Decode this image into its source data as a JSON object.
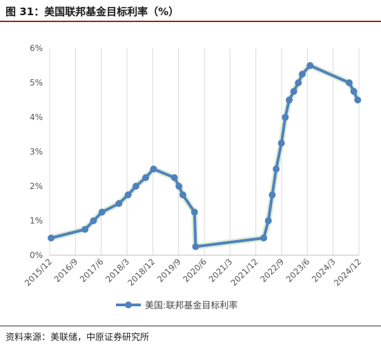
{
  "title": "图 31：美国联邦基金目标利率（%）",
  "source": "资料来源：美联储，中原证券研究所",
  "chart_data": {
    "type": "line",
    "title": "",
    "ylabel": "",
    "xlabel": "",
    "ylim": [
      0,
      6
    ],
    "y_ticks": [
      "0%",
      "1%",
      "2%",
      "3%",
      "4%",
      "5%",
      "6%"
    ],
    "x_tick_labels": [
      "2015/12",
      "2016/9",
      "2017/6",
      "2018/3",
      "2018/12",
      "2019/9",
      "2020/6",
      "2021/3",
      "2021/12",
      "2022/9",
      "2023/6",
      "2024/3",
      "2024/12"
    ],
    "grid": "vertical",
    "legend": "bottom",
    "series": [
      {
        "name": "美国:联邦基金目标利率",
        "color": "#4f81bd",
        "points": [
          {
            "x": "2015-12-16",
            "y": 0.5
          },
          {
            "x": "2016-12-14",
            "y": 0.75
          },
          {
            "x": "2017-03-15",
            "y": 1.0
          },
          {
            "x": "2017-06-14",
            "y": 1.25
          },
          {
            "x": "2017-12-13",
            "y": 1.5
          },
          {
            "x": "2018-03-21",
            "y": 1.75
          },
          {
            "x": "2018-06-13",
            "y": 2.0
          },
          {
            "x": "2018-09-26",
            "y": 2.25
          },
          {
            "x": "2018-12-19",
            "y": 2.5
          },
          {
            "x": "2019-07-31",
            "y": 2.25
          },
          {
            "x": "2019-09-18",
            "y": 2.0
          },
          {
            "x": "2019-10-30",
            "y": 1.75
          },
          {
            "x": "2020-03-03",
            "y": 1.25
          },
          {
            "x": "2020-03-15",
            "y": 0.25
          },
          {
            "x": "2022-03-16",
            "y": 0.5
          },
          {
            "x": "2022-05-04",
            "y": 1.0
          },
          {
            "x": "2022-06-15",
            "y": 1.75
          },
          {
            "x": "2022-07-27",
            "y": 2.5
          },
          {
            "x": "2022-09-21",
            "y": 3.25
          },
          {
            "x": "2022-11-02",
            "y": 4.0
          },
          {
            "x": "2022-12-14",
            "y": 4.5
          },
          {
            "x": "2023-02-01",
            "y": 4.75
          },
          {
            "x": "2023-03-22",
            "y": 5.0
          },
          {
            "x": "2023-05-03",
            "y": 5.25
          },
          {
            "x": "2023-07-26",
            "y": 5.5
          },
          {
            "x": "2024-09-18",
            "y": 5.0
          },
          {
            "x": "2024-11-07",
            "y": 4.75
          },
          {
            "x": "2024-12-18",
            "y": 4.5
          }
        ]
      }
    ]
  }
}
